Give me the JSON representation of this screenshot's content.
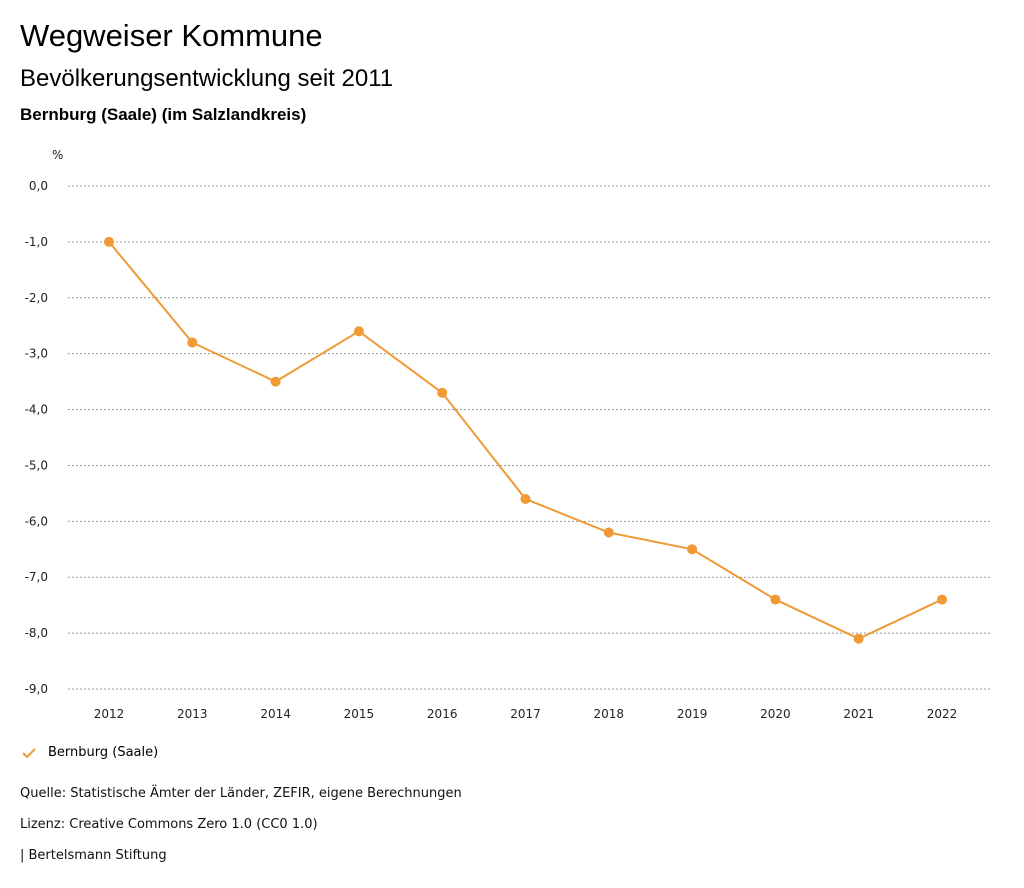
{
  "header": {
    "title": "Wegweiser Kommune",
    "subtitle": "Bevölkerungsentwicklung seit 2011",
    "region": "Bernburg (Saale) (im Salzlandkreis)"
  },
  "chart_data": {
    "type": "line",
    "title": "Bevölkerungsentwicklung seit 2011",
    "ylabel": "%",
    "xlabel": "",
    "ylim": [
      -9,
      0
    ],
    "yticks": [
      0,
      -1,
      -2,
      -3,
      -4,
      -5,
      -6,
      -7,
      -8,
      -9
    ],
    "ytick_labels": [
      "0,0",
      "-1,0",
      "-2,0",
      "-3,0",
      "-4,0",
      "-5,0",
      "-6,0",
      "-7,0",
      "-8,0",
      "-9,0"
    ],
    "x": [
      "2012",
      "2013",
      "2014",
      "2015",
      "2016",
      "2017",
      "2018",
      "2019",
      "2020",
      "2021",
      "2022"
    ],
    "grid": true,
    "legend": "bottom-left",
    "series": [
      {
        "name": "Bernburg (Saale)",
        "color": "#ef9a35",
        "values": [
          -1.0,
          -2.8,
          -3.5,
          -2.6,
          -3.7,
          -5.6,
          -6.2,
          -6.5,
          -7.4,
          -8.1,
          -7.4
        ]
      }
    ]
  },
  "footer": {
    "source": "Quelle: Statistische Ämter der Länder, ZEFIR, eigene Berechnungen",
    "license": "Lizenz: Creative Commons Zero 1.0 (CC0 1.0)",
    "publisher": "| Bertelsmann Stiftung"
  }
}
